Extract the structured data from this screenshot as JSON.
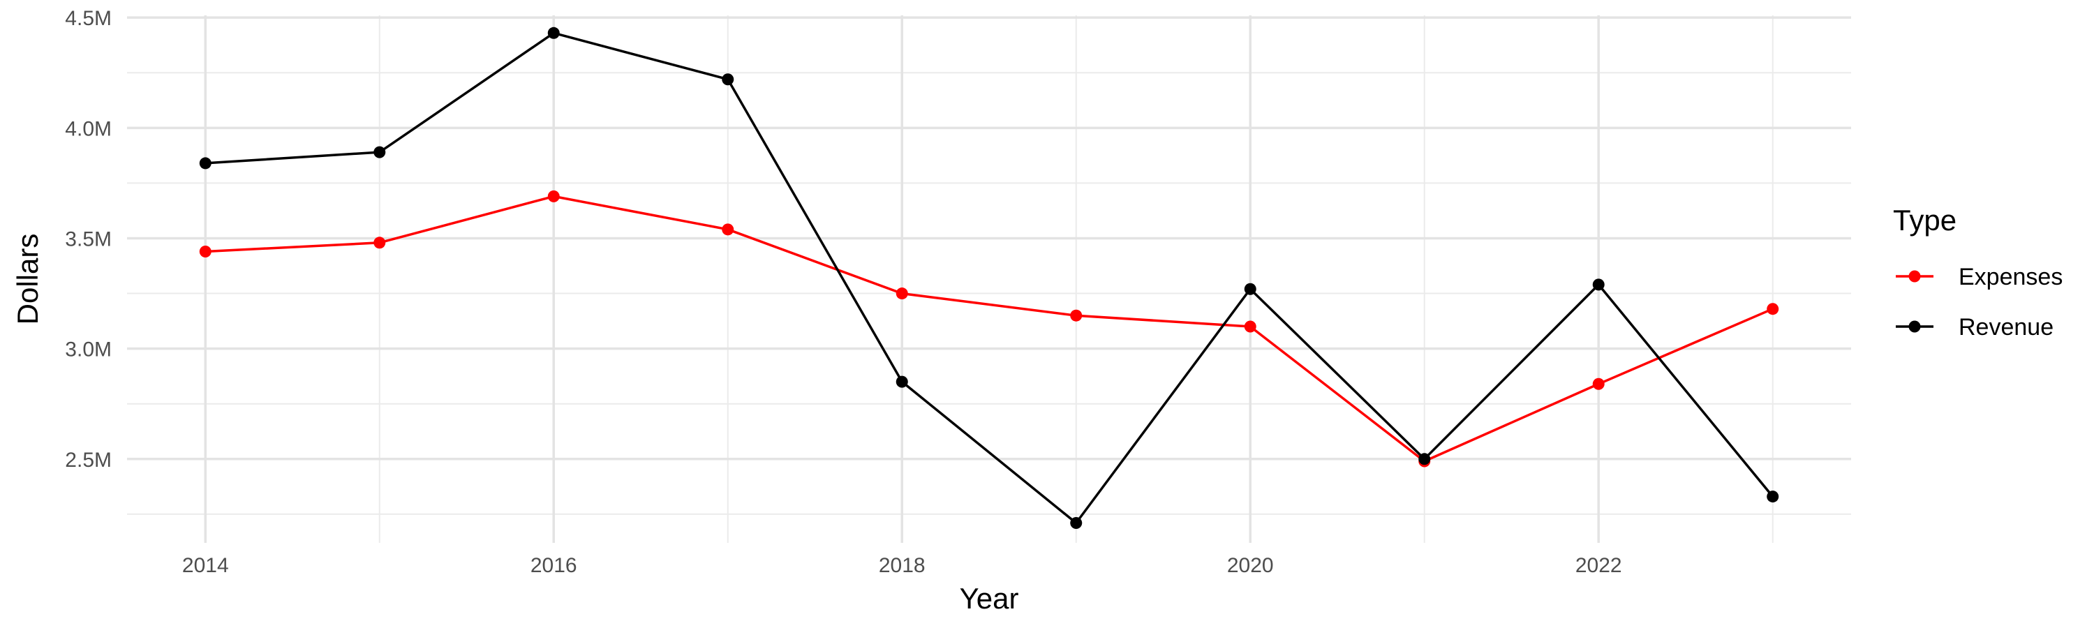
{
  "chart_data": {
    "type": "line",
    "title": "",
    "xlabel": "Year",
    "ylabel": "Dollars",
    "x": [
      2014,
      2015,
      2016,
      2017,
      2018,
      2019,
      2020,
      2021,
      2022,
      2023
    ],
    "x_ticks": [
      2014,
      2016,
      2018,
      2020,
      2022
    ],
    "x_tick_labels": [
      "2014",
      "2016",
      "2018",
      "2020",
      "2022"
    ],
    "y_ticks": [
      2500000,
      3000000,
      3500000,
      4000000,
      4500000
    ],
    "y_tick_labels": [
      "2.5M",
      "3.0M",
      "3.5M",
      "4.0M",
      "4.5M"
    ],
    "xlim": [
      2013.55,
      2023.45
    ],
    "ylim": [
      2120000,
      4510000
    ],
    "grid": true,
    "legend": {
      "title": "Type",
      "position": "right"
    },
    "series": [
      {
        "name": "Expenses",
        "color": "#ff0000",
        "values": [
          3440000,
          3480000,
          3690000,
          3540000,
          3250000,
          3150000,
          3100000,
          2490000,
          2840000,
          3180000
        ]
      },
      {
        "name": "Revenue",
        "color": "#000000",
        "values": [
          3840000,
          3890000,
          4430000,
          4220000,
          2850000,
          2210000,
          3270000,
          2500000,
          3290000,
          2330000
        ]
      }
    ]
  }
}
